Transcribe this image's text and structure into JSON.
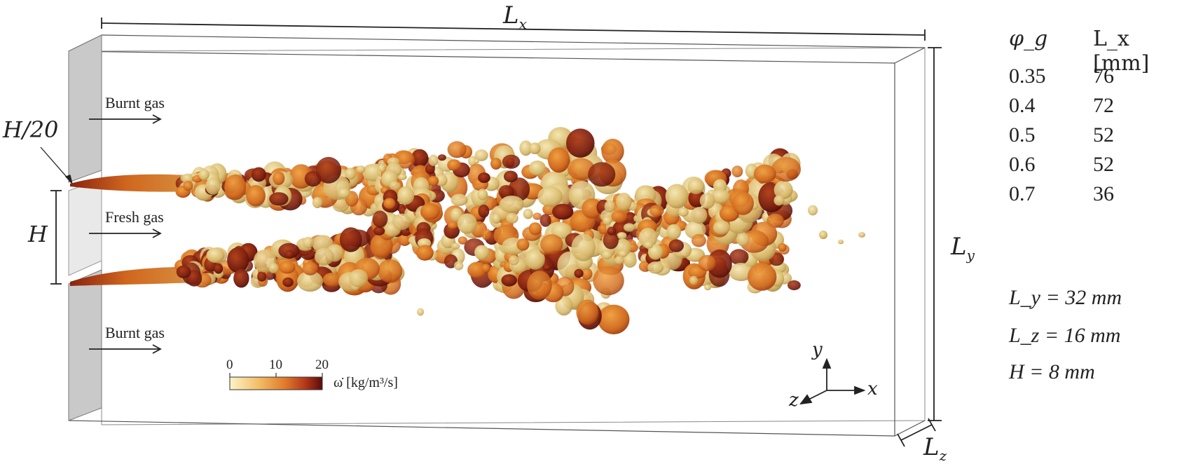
{
  "dimension_labels": {
    "length_x": "L_x",
    "length_y": "L_y",
    "length_z": "L_z",
    "slot_height": "H",
    "lip_thickness": "H/20"
  },
  "inlet_labels": {
    "top": "Burnt gas",
    "middle": "Fresh gas",
    "bottom": "Burnt gas"
  },
  "colorbar": {
    "ticks": [
      "0",
      "10",
      "20"
    ],
    "label": "ω̇ [kg/m³/s]",
    "colors": [
      "#fbf4c8",
      "#f3c06a",
      "#e07a2a",
      "#b2361a",
      "#5a0c0a"
    ]
  },
  "axes_triad": {
    "x": "x",
    "y": "y",
    "z": "z"
  },
  "table": {
    "headers": [
      "φ_g",
      "L_x [mm]"
    ],
    "rows": [
      [
        "0.35",
        "76"
      ],
      [
        "0.4",
        "72"
      ],
      [
        "0.5",
        "52"
      ],
      [
        "0.6",
        "52"
      ],
      [
        "0.7",
        "36"
      ]
    ]
  },
  "parameters": [
    "L_y = 32 mm",
    "L_z = 16 mm",
    "H = 8 mm"
  ],
  "flame_colors": {
    "light": "#e8d89a",
    "mid": "#d9a04a",
    "orange": "#d46a20",
    "dark": "#7a1e10"
  }
}
